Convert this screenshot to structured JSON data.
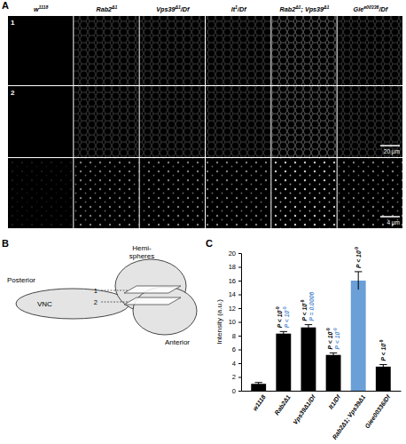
{
  "panel_labels": [
    "A",
    "B",
    "C"
  ],
  "panel_a": {
    "genotypes": [
      [
        {
          "text": "w"
        },
        {
          "text": "1118",
          "sup": true
        }
      ],
      [
        {
          "text": "Rab2"
        },
        {
          "text": "Δ1",
          "sup": true
        }
      ],
      [
        {
          "text": "Vps39"
        },
        {
          "text": "Δ1",
          "sup": true
        },
        {
          "text": "/Df"
        }
      ],
      [
        {
          "text": "lt"
        },
        {
          "text": "1",
          "sup": true
        },
        {
          "text": "/Df"
        }
      ],
      [
        {
          "text": "Rab2"
        },
        {
          "text": "Δ1",
          "sup": true
        },
        {
          "text": "; Vps39"
        },
        {
          "text": "Δ1",
          "sup": true
        }
      ],
      [
        {
          "text": "Gie"
        },
        {
          "text": "e00336",
          "sup": true
        },
        {
          "text": "/Df"
        }
      ]
    ],
    "rows": [
      "1",
      "2"
    ],
    "scale_bars": [
      "20 µm",
      "4 µm"
    ]
  },
  "panel_b": {
    "hemispheres": [
      "Hemi-",
      "spheres"
    ],
    "posterior": "Posterior",
    "anterior": "Anterior",
    "vnc": "VNC",
    "planes": [
      "1",
      "2"
    ]
  },
  "chart_data": {
    "type": "bar",
    "y_label": "Intensity (a.u.)",
    "categories": [
      "w1118",
      "Rab2Δ1",
      "Vps39Δ1/Df",
      "lt1/Df",
      "Rab2Δ1; Vps39Δ1",
      "Giee00336/Df"
    ],
    "values": [
      1.0,
      8.3,
      9.2,
      5.2,
      16.0,
      3.5
    ],
    "errors": [
      0.2,
      0.3,
      0.4,
      0.3,
      1.3,
      0.3
    ],
    "colors": [
      "#000000",
      "#000000",
      "#000000",
      "#000000",
      "#6a9fd8",
      "#000000"
    ],
    "ylim": [
      0,
      20
    ],
    "yticks": [
      0,
      2,
      4,
      6,
      8,
      10,
      12,
      14,
      16,
      18,
      20
    ],
    "annotations": [
      {
        "x": "Rab2Δ1",
        "lines": [
          {
            "text": "P < 10",
            "sup": "-9",
            "color": "#000000"
          },
          {
            "text": "P < 10",
            "sup": "-9",
            "color": "#5b8fd0"
          }
        ]
      },
      {
        "x": "Vps39Δ1/Df",
        "lines": [
          {
            "text": "P < 10",
            "sup": "-9",
            "color": "#000000"
          },
          {
            "text": "P = 0.0006",
            "color": "#5b8fd0"
          }
        ]
      },
      {
        "x": "lt1/Df",
        "lines": [
          {
            "text": "P < 10",
            "sup": "-9",
            "color": "#000000"
          },
          {
            "text": "P < 10",
            "sup": "-9",
            "color": "#5b8fd0"
          }
        ]
      },
      {
        "x": "Rab2Δ1; Vps39Δ1",
        "lines": [
          {
            "text": "P < 10",
            "sup": "-9",
            "color": "#000000"
          }
        ]
      },
      {
        "x": "Giee00336/Df",
        "lines": [
          {
            "text": "P < 10",
            "sup": "-9",
            "color": "#000000"
          }
        ]
      }
    ]
  }
}
